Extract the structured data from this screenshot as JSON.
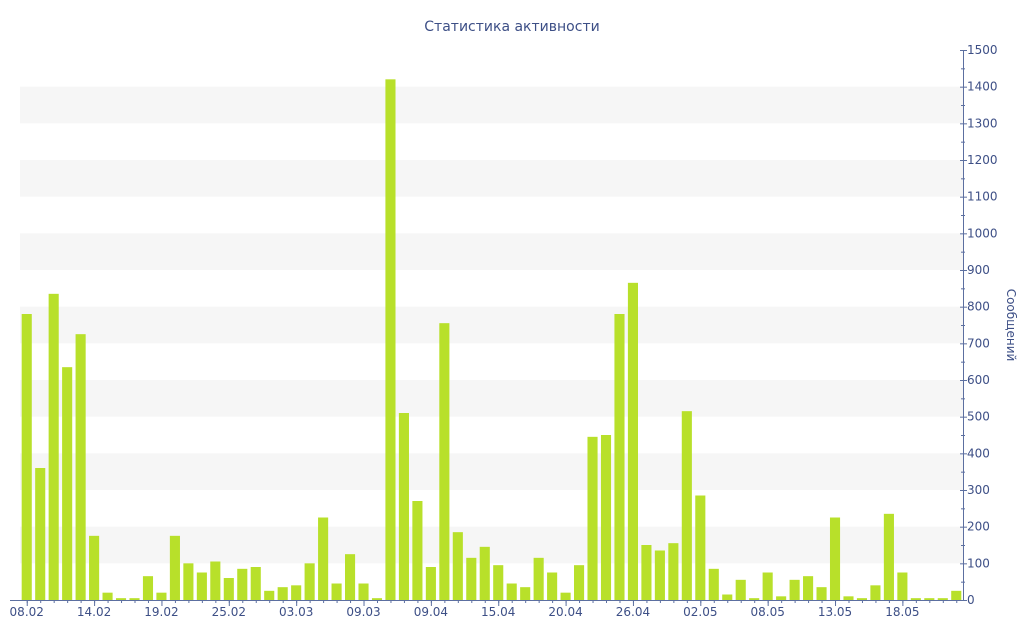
{
  "chart_data": {
    "type": "bar",
    "title": "Статистика активности",
    "ylabel": "Сообщений",
    "xlabel": "",
    "ylim": [
      0,
      1500
    ],
    "yticks": [
      0,
      100,
      200,
      300,
      400,
      500,
      600,
      700,
      800,
      900,
      1000,
      1100,
      1200,
      1300,
      1400,
      1500
    ],
    "y_axis_side": "right",
    "grid": "alternating horizontal bands",
    "x_tick_labels": [
      "08.02",
      "14.02",
      "19.02",
      "25.02",
      "03.03",
      "09.03",
      "09.04",
      "15.04",
      "20.04",
      "26.04",
      "02.05",
      "08.05",
      "13.05",
      "18.05"
    ],
    "x_tick_positions": [
      0,
      5,
      10,
      15,
      20,
      25,
      30,
      35,
      40,
      45,
      50,
      55,
      60,
      65
    ],
    "values": [
      780,
      360,
      835,
      635,
      725,
      175,
      20,
      5,
      5,
      65,
      20,
      175,
      100,
      75,
      105,
      60,
      85,
      90,
      25,
      35,
      40,
      100,
      225,
      45,
      125,
      45,
      5,
      1420,
      510,
      270,
      90,
      755,
      185,
      115,
      145,
      95,
      45,
      35,
      115,
      75,
      20,
      95,
      445,
      450,
      780,
      865,
      150,
      135,
      155,
      515,
      285,
      85,
      15,
      55,
      5,
      75,
      10,
      55,
      65,
      35,
      225,
      10,
      5,
      40,
      235,
      75,
      5,
      5,
      5,
      25
    ],
    "colors": {
      "bar": "#b8e02a",
      "band": "#f6f6f6",
      "text": "#3d4f86",
      "axis": "#5c6fa0"
    }
  }
}
